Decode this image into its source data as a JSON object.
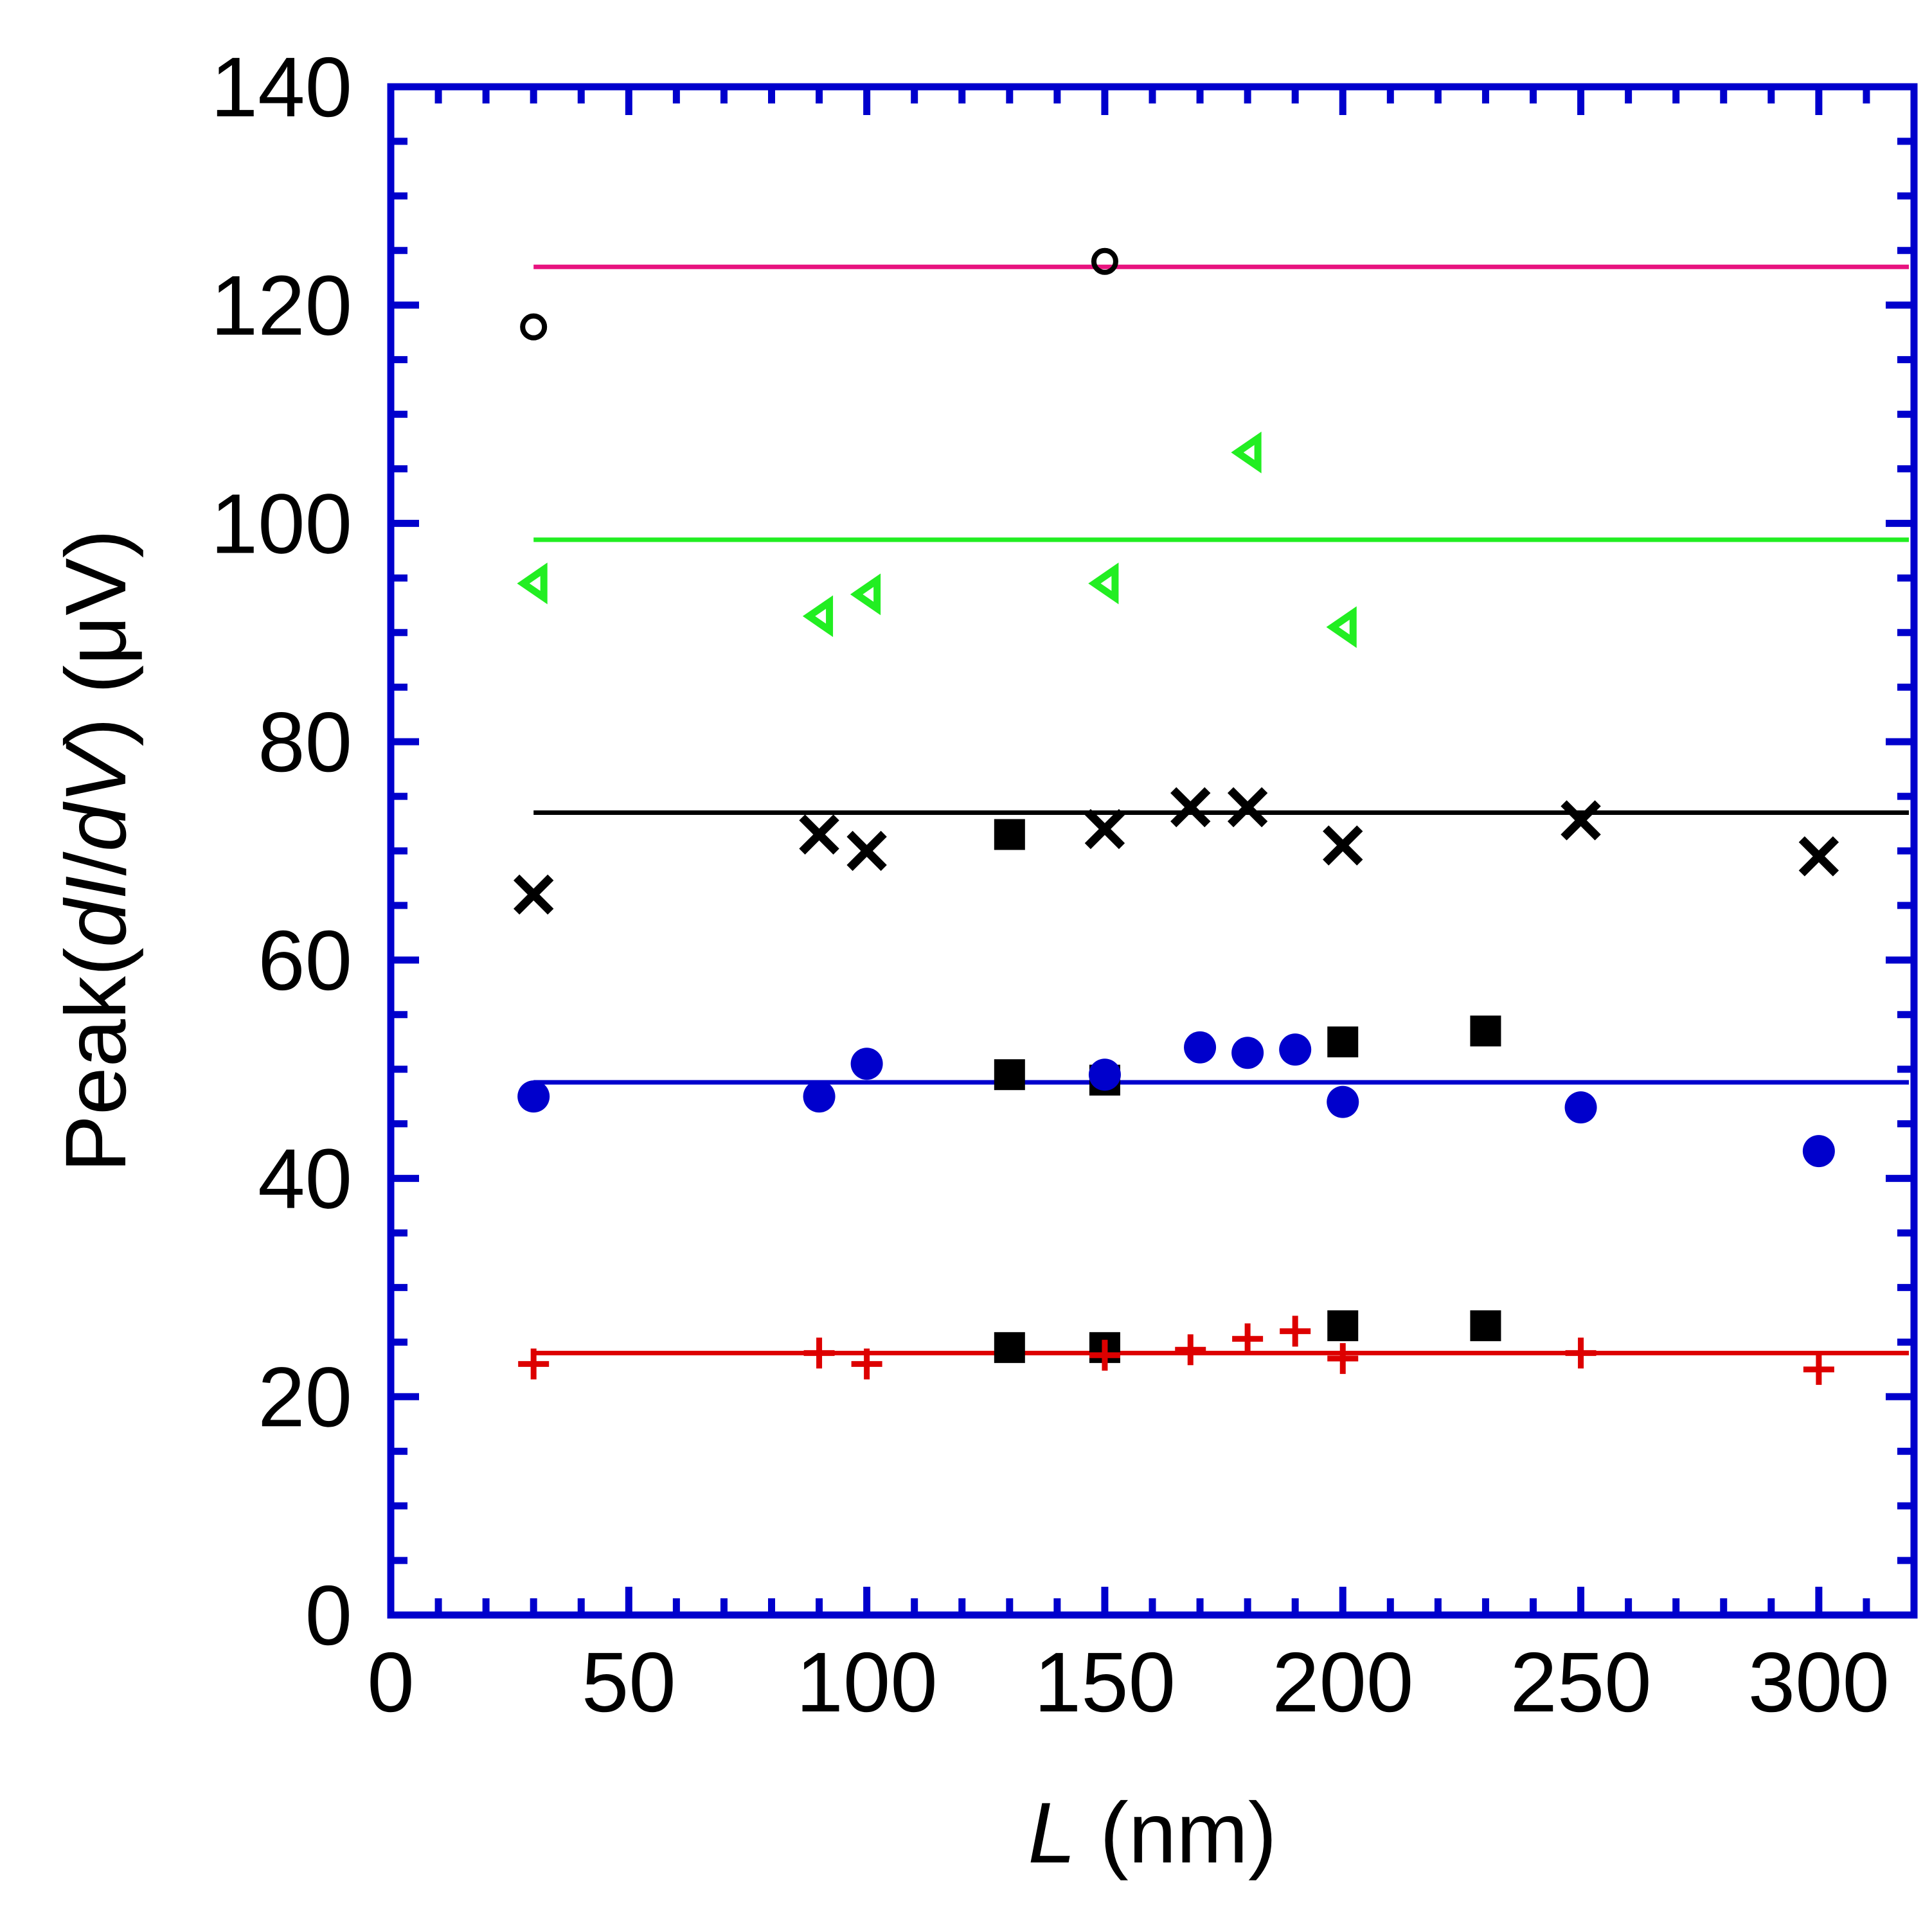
{
  "chart_data": {
    "type": "scatter",
    "xlabel": {
      "italic": "L",
      "rest": " (nm)"
    },
    "ylabel": {
      "prefix": "Peak(",
      "d1": "d",
      "I": "I",
      "slash": "/",
      "d2": "d",
      "V": "V",
      "suffix": ") (μV)"
    },
    "xlim": [
      0,
      320
    ],
    "ylim": [
      0,
      140
    ],
    "xticks": [
      0,
      50,
      100,
      150,
      200,
      250,
      300
    ],
    "yticks": [
      0,
      20,
      40,
      60,
      80,
      100,
      120,
      140
    ],
    "frame_color": "#0000cc",
    "reference_lines": [
      {
        "name": "magenta-line",
        "y": 123.5,
        "x_from": 30,
        "x_to": 320,
        "color": "#e8137f"
      },
      {
        "name": "green-line",
        "y": 98.5,
        "x_from": 30,
        "x_to": 320,
        "color": "#22ee22"
      },
      {
        "name": "black-line",
        "y": 73.5,
        "x_from": 30,
        "x_to": 320,
        "color": "#000000"
      },
      {
        "name": "blue-line",
        "y": 48.8,
        "x_from": 30,
        "x_to": 320,
        "color": "#0000cc"
      },
      {
        "name": "red-line",
        "y": 24.0,
        "x_from": 30,
        "x_to": 320,
        "color": "#dd0000"
      }
    ],
    "series": [
      {
        "name": "open-circles",
        "marker": "open-circle",
        "color": "#000000",
        "points": [
          [
            30,
            118
          ],
          [
            150,
            124
          ]
        ]
      },
      {
        "name": "green-triangles",
        "marker": "triangle-left",
        "color": "#22ee22",
        "points": [
          [
            30,
            94.5
          ],
          [
            90,
            91.5
          ],
          [
            100,
            93.5
          ],
          [
            150,
            94.5
          ],
          [
            180,
            106.5
          ],
          [
            200,
            90.5
          ]
        ]
      },
      {
        "name": "black-crosses",
        "marker": "cross",
        "color": "#000000",
        "points": [
          [
            30,
            66
          ],
          [
            90,
            71.5
          ],
          [
            100,
            70
          ],
          [
            150,
            72
          ],
          [
            168,
            74
          ],
          [
            180,
            74
          ],
          [
            200,
            70.5
          ],
          [
            250,
            72.8
          ],
          [
            300,
            69.5
          ]
        ]
      },
      {
        "name": "black-squares",
        "marker": "filled-square",
        "color": "#000000",
        "points": [
          [
            130,
            71.5
          ],
          [
            130,
            49.5
          ],
          [
            150,
            49
          ],
          [
            200,
            52.5
          ],
          [
            230,
            53.5
          ],
          [
            130,
            24.5
          ],
          [
            150,
            24.5
          ],
          [
            200,
            26.5
          ],
          [
            230,
            26.5
          ]
        ]
      },
      {
        "name": "blue-circles",
        "marker": "filled-circle",
        "color": "#0000cc",
        "points": [
          [
            30,
            47.5
          ],
          [
            90,
            47.5
          ],
          [
            100,
            50.5
          ],
          [
            150,
            49.5
          ],
          [
            170,
            52
          ],
          [
            180,
            51.5
          ],
          [
            190,
            51.8
          ],
          [
            200,
            47
          ],
          [
            250,
            46.5
          ],
          [
            300,
            42.5
          ]
        ]
      },
      {
        "name": "red-plus",
        "marker": "plus",
        "color": "#dd0000",
        "points": [
          [
            30,
            23
          ],
          [
            90,
            24
          ],
          [
            100,
            23
          ],
          [
            150,
            23.8
          ],
          [
            168,
            24.3
          ],
          [
            180,
            25.3
          ],
          [
            190,
            26
          ],
          [
            200,
            23.5
          ],
          [
            250,
            24
          ],
          [
            300,
            22.5
          ]
        ]
      }
    ]
  }
}
